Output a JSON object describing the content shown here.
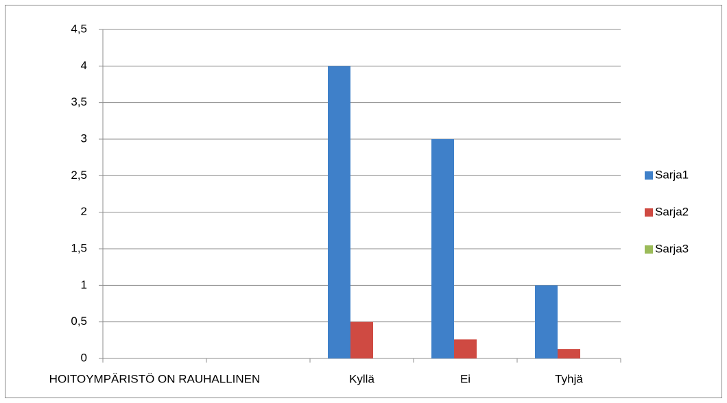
{
  "chart_data": {
    "type": "bar",
    "categories": [
      "HOITOYMPÄRISTÖ ON RAUHALLINEN",
      null,
      "Kyllä",
      "Ei",
      "Tyhjä"
    ],
    "series": [
      {
        "name": "Sarja1",
        "color": "#3f80c9",
        "values": [
          null,
          null,
          4,
          3,
          1
        ]
      },
      {
        "name": "Sarja2",
        "color": "#cf4a42",
        "values": [
          null,
          null,
          0.5,
          0.26,
          0.13
        ]
      },
      {
        "name": "Sarja3",
        "color": "#9bbb59",
        "values": [
          null,
          null,
          null,
          null,
          null
        ]
      }
    ],
    "ylim": [
      0,
      4.5
    ],
    "yticks": [
      0,
      {
        "value": 0.5,
        "label": "0,5"
      },
      1,
      {
        "value": 1.5,
        "label": "1,5"
      },
      2,
      {
        "value": 2.5,
        "label": "2,5"
      },
      3,
      {
        "value": 3.5,
        "label": "3,5"
      },
      4,
      {
        "value": 4.5,
        "label": "4,5"
      }
    ],
    "grid": true,
    "legend": "right"
  }
}
